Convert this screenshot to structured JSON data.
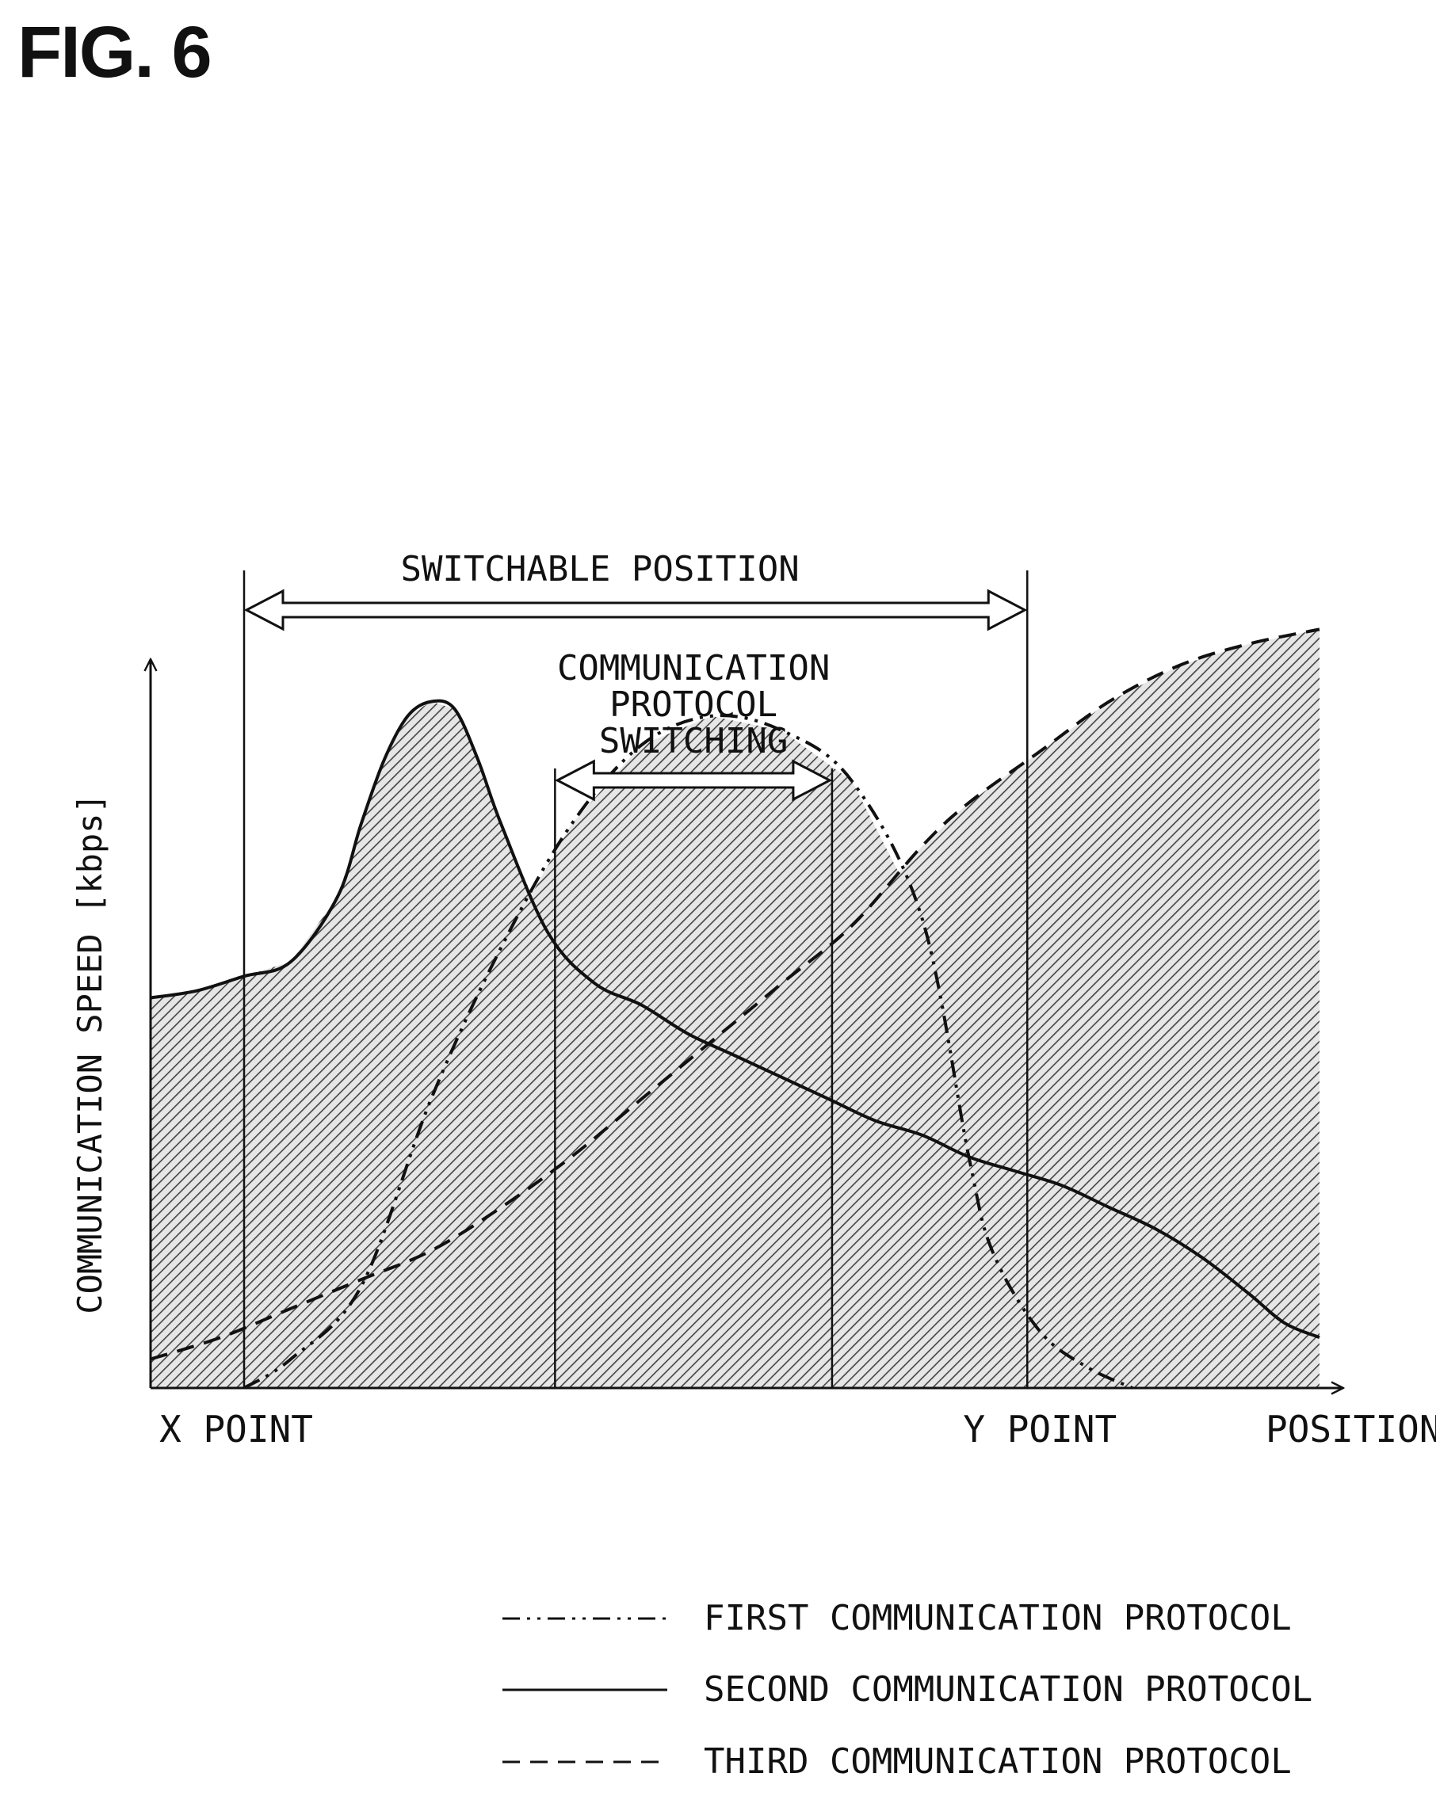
{
  "figure": {
    "title": "FIG. 6"
  },
  "chart_data": {
    "type": "area",
    "title": "",
    "xlabel": "POSITION",
    "ylabel": "COMMUNICATION SPEED [kbps]",
    "x_tick_labels": [
      "X POINT",
      "Y POINT"
    ],
    "x_range": [
      0,
      100
    ],
    "y_range": [
      0,
      100
    ],
    "axis_ticks_shown": false,
    "grid": false,
    "legend_placement": "bottom-right",
    "fill": "hatched area under the maximum of the three curves",
    "series": [
      {
        "name": "FIRST COMMUNICATION PROTOCOL",
        "line_style": "dash-dot-dot",
        "x": [
          8,
          12,
          18,
          24,
          30,
          36,
          42,
          48,
          54,
          60,
          66,
          70,
          72,
          76,
          80,
          84
        ],
        "y": [
          0,
          4,
          14,
          40,
          61,
          78,
          89,
          93,
          91,
          84,
          65,
          32,
          19,
          8,
          3,
          0
        ]
      },
      {
        "name": "SECOND COMMUNICATION PROTOCOL",
        "line_style": "solid",
        "x": [
          0,
          4,
          8,
          12,
          16,
          18,
          20,
          22,
          24,
          26,
          28,
          30,
          34,
          38,
          42,
          46,
          50,
          54,
          58,
          62,
          66,
          70,
          74,
          78,
          82,
          86,
          90,
          94,
          97,
          100
        ],
        "y": [
          54,
          55,
          57,
          59,
          68,
          78,
          87,
          93,
          95,
          94,
          87,
          78,
          63,
          56,
          53,
          49,
          46,
          43,
          40,
          37,
          35,
          32,
          30,
          28,
          25,
          22,
          18,
          13,
          9,
          7
        ]
      },
      {
        "name": "THIRD COMMUNICATION PROTOCOL",
        "line_style": "dashed",
        "x": [
          0,
          6,
          12,
          18,
          24,
          30,
          36,
          42,
          48,
          54,
          60,
          66,
          70,
          76,
          82,
          88,
          94,
          100
        ],
        "y": [
          4,
          7,
          11,
          15,
          19,
          25,
          32,
          40,
          48,
          56,
          64,
          75,
          81,
          88,
          95,
          100,
          103,
          105
        ]
      }
    ],
    "reference_lines": [
      {
        "x": 8,
        "label": "X POINT"
      },
      {
        "x": 34.6
      },
      {
        "x": 58.3
      },
      {
        "x": 75,
        "label": "Y POINT"
      }
    ],
    "annotations": [
      {
        "text": "SWITCHABLE POSITION",
        "spans_x": [
          8,
          75
        ],
        "arrow": "double-headed"
      },
      {
        "text": "COMMUNICATION PROTOCOL SWITCHING",
        "lines": [
          "COMMUNICATION",
          "PROTOCOL",
          "SWITCHING"
        ],
        "spans_x": [
          34.6,
          58.3
        ],
        "arrow": "double-headed"
      }
    ],
    "legend": [
      {
        "label": "FIRST COMMUNICATION PROTOCOL",
        "line_style": "dash-dot-dot"
      },
      {
        "label": "SECOND COMMUNICATION PROTOCOL",
        "line_style": "solid"
      },
      {
        "label": "THIRD COMMUNICATION PROTOCOL",
        "line_style": "dashed"
      }
    ]
  }
}
